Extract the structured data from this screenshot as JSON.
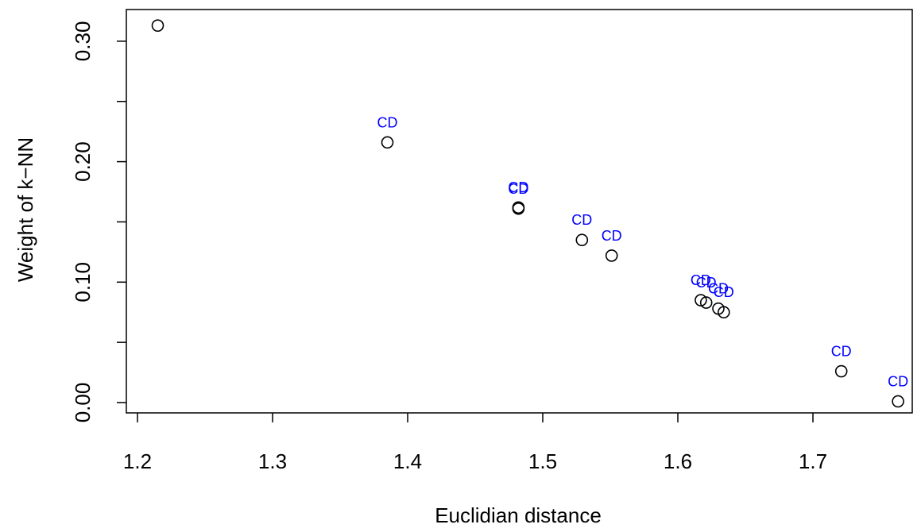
{
  "chart_data": {
    "type": "scatter",
    "title": "",
    "xlabel": "Euclidian distance",
    "ylabel": "Weight of k−NN",
    "xlim": [
      1.2,
      1.77
    ],
    "ylim": [
      0.0,
      0.32
    ],
    "x_ticks": [
      1.2,
      1.3,
      1.4,
      1.5,
      1.6,
      1.7
    ],
    "x_tick_labels": [
      "1.2",
      "1.3",
      "1.4",
      "1.5",
      "1.6",
      "1.7"
    ],
    "y_ticks": [
      0.0,
      0.05,
      0.1,
      0.15,
      0.2,
      0.25,
      0.3
    ],
    "y_tick_labels": [
      "0.00",
      "",
      "0.10",
      "",
      "0.20",
      "",
      "0.30"
    ],
    "grid": false,
    "label_color": "#0000ff",
    "marker_color": "#000000",
    "points": [
      {
        "x": 1.215,
        "y": 0.313,
        "label": ""
      },
      {
        "x": 1.385,
        "y": 0.216,
        "label": "CD"
      },
      {
        "x": 1.482,
        "y": 0.162,
        "label": "CD"
      },
      {
        "x": 1.482,
        "y": 0.161,
        "label": "CD"
      },
      {
        "x": 1.529,
        "y": 0.135,
        "label": "CD"
      },
      {
        "x": 1.551,
        "y": 0.122,
        "label": "CD"
      },
      {
        "x": 1.617,
        "y": 0.085,
        "label": "CD"
      },
      {
        "x": 1.621,
        "y": 0.083,
        "label": "CD"
      },
      {
        "x": 1.63,
        "y": 0.078,
        "label": "CD"
      },
      {
        "x": 1.634,
        "y": 0.075,
        "label": "CD"
      },
      {
        "x": 1.721,
        "y": 0.026,
        "label": "CD"
      },
      {
        "x": 1.763,
        "y": 0.001,
        "label": "CD"
      }
    ]
  }
}
